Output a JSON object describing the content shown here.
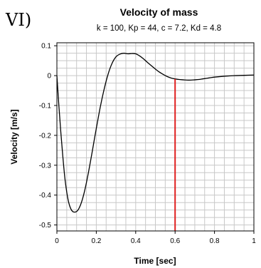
{
  "panel_label": "VI)",
  "chart_data": {
    "type": "line",
    "title": "Velocity of mass",
    "subtitle": "k = 100, Kp = 44, c = 7.2, Kd = 4.8",
    "xlabel": "Time [sec]",
    "ylabel": "Velocity [m/s]",
    "xlim": [
      0,
      1
    ],
    "ylim": [
      -0.52,
      0.11
    ],
    "xticks": [
      0,
      0.2,
      0.4,
      0.6,
      0.8,
      1
    ],
    "xtick_labels": [
      "0",
      "0.2",
      "0.4",
      "0.6",
      "0.8",
      "1"
    ],
    "yticks": [
      0.1,
      0,
      -0.1,
      -0.2,
      -0.3,
      -0.4,
      -0.5
    ],
    "ytick_labels": [
      "0.1",
      "0",
      "-0.1",
      "-0.2",
      "-0.3",
      "-0.4",
      "-0.5"
    ],
    "grid": true,
    "series": [
      {
        "color": "#000000",
        "x": [
          0,
          0.01,
          0.02,
          0.03,
          0.04,
          0.05,
          0.06,
          0.07,
          0.08,
          0.09,
          0.1,
          0.11,
          0.12,
          0.13,
          0.14,
          0.15,
          0.16,
          0.17,
          0.18,
          0.19,
          0.2,
          0.22,
          0.24,
          0.26,
          0.28,
          0.3,
          0.32,
          0.34,
          0.36,
          0.38,
          0.4,
          0.42,
          0.44,
          0.46,
          0.48,
          0.5,
          0.52,
          0.54,
          0.56,
          0.58,
          0.6,
          0.62,
          0.64,
          0.66,
          0.68,
          0.7,
          0.72,
          0.74,
          0.76,
          0.78,
          0.8,
          0.85,
          0.9,
          0.95,
          1.0
        ],
        "values": [
          0,
          -0.1,
          -0.19,
          -0.27,
          -0.34,
          -0.39,
          -0.425,
          -0.445,
          -0.455,
          -0.457,
          -0.455,
          -0.447,
          -0.433,
          -0.413,
          -0.388,
          -0.358,
          -0.325,
          -0.289,
          -0.252,
          -0.214,
          -0.177,
          -0.106,
          -0.045,
          0.005,
          0.041,
          0.063,
          0.072,
          0.075,
          0.073,
          0.074,
          0.073,
          0.066,
          0.056,
          0.044,
          0.033,
          0.022,
          0.012,
          0.004,
          -0.003,
          -0.008,
          -0.011,
          -0.013,
          -0.014,
          -0.015,
          -0.015,
          -0.014,
          -0.013,
          -0.011,
          -0.009,
          -0.007,
          -0.005,
          -0.002,
          0.0,
          0.001,
          0.002
        ]
      }
    ],
    "vertical_marker": {
      "x": 0.6,
      "color": "#e02020"
    }
  }
}
